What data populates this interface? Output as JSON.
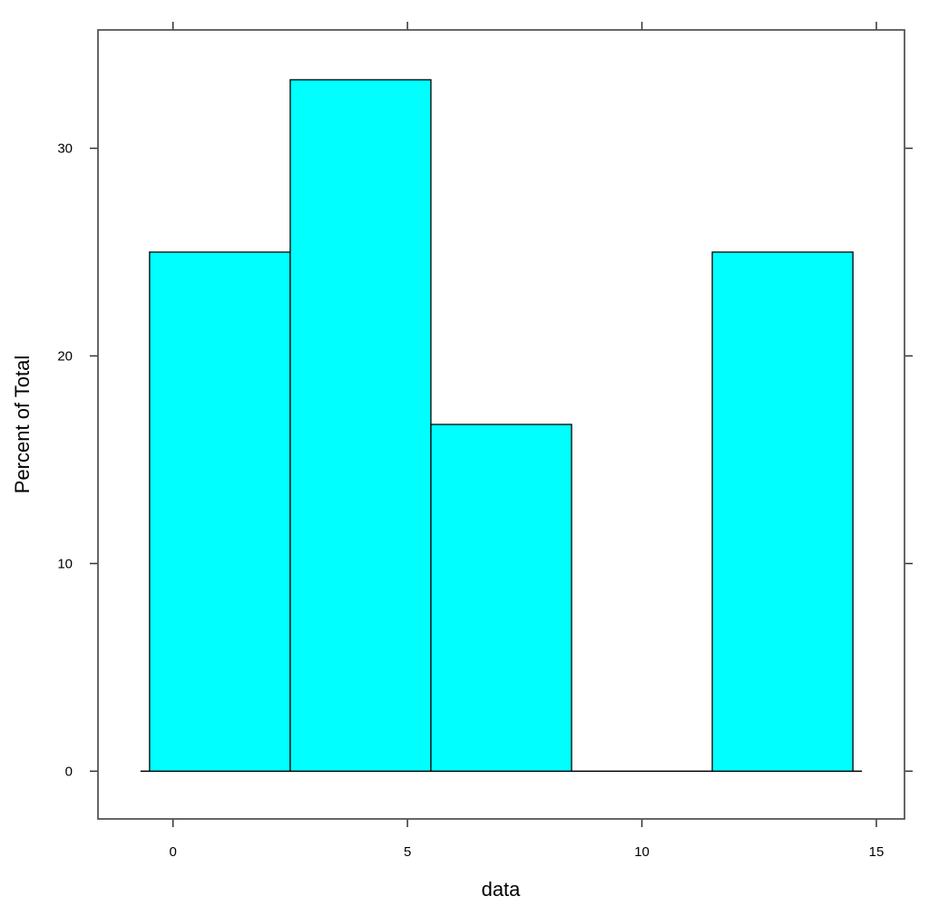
{
  "chart_data": {
    "type": "histogram",
    "xlabel": "data",
    "ylabel": "Percent of Total",
    "bins": [
      -0.5,
      2.5,
      5.5,
      8.5,
      11.5,
      14.5
    ],
    "values": [
      25,
      33.3,
      16.7,
      0,
      25
    ],
    "color": "#00ffff",
    "xlim": [
      -1.6,
      15.6
    ],
    "ylim": [
      -2.3,
      35.7
    ],
    "xticks": [
      0,
      5,
      10,
      15
    ],
    "yticks": [
      0,
      10,
      20,
      30
    ]
  }
}
